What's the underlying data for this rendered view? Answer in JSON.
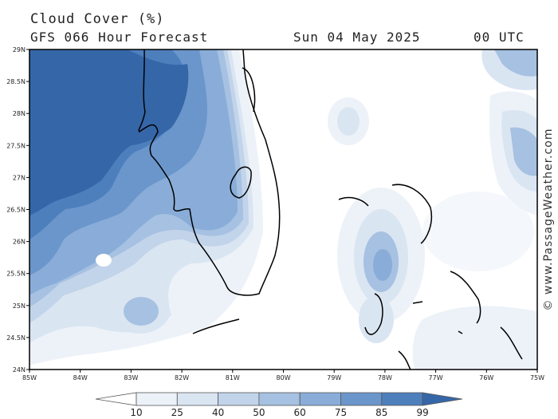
{
  "header": {
    "title": "Cloud Cover (%)",
    "subtitle": "GFS 066 Hour Forecast",
    "date": "Sun 04 May 2025",
    "time": "00 UTC"
  },
  "credit": "© www.PassageWeather.com",
  "map": {
    "lat_labels": [
      "29N",
      "28.5N",
      "28N",
      "27.5N",
      "27N",
      "26.5N",
      "26N",
      "25.5N",
      "25N",
      "24.5N",
      "24N"
    ],
    "lon_labels": [
      "85W",
      "84W",
      "83W",
      "82W",
      "81W",
      "80W",
      "79W",
      "78W",
      "77W",
      "76W",
      "75W"
    ]
  },
  "legend": {
    "labels": [
      "10",
      "25",
      "40",
      "50",
      "60",
      "75",
      "85",
      "99"
    ],
    "colors": [
      "#ffffff",
      "#edf2f9",
      "#dae5f2",
      "#c2d4ea",
      "#a6c1e1",
      "#89add8",
      "#6b96cb",
      "#4d7fbd",
      "#3567a8"
    ]
  },
  "colors": {
    "land_outline": "#000000",
    "frame": "#000000"
  }
}
